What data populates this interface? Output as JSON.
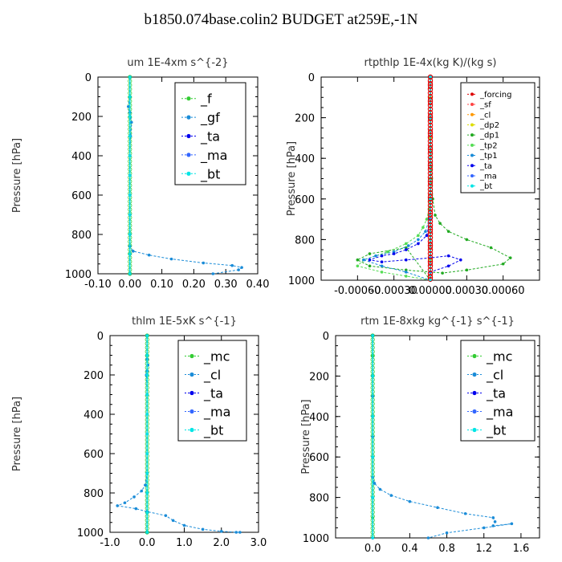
{
  "figure": {
    "title": "b1850.074base.colin2  BUDGET at259E,-1N"
  },
  "colors": {
    "f": "#33cc33",
    "gf": "#1a8cd8",
    "ta": "#0000ee",
    "ma": "#3366ff",
    "bt": "#00e5e5",
    "mc": "#33cc33",
    "cl": "#1a8cd8",
    "forcing": "#dd0000",
    "sf": "#ff4444",
    "cl_rt": "#ff9900",
    "dp2": "#dddd00",
    "dp1": "#22aa22",
    "tp2": "#55dd55",
    "tp1": "#1a8cd8"
  },
  "chart_data": [
    {
      "type": "line",
      "title": "um   1E-4xm s^{-2}",
      "ylabel": "Pressure [hPa]",
      "xlim": [
        -0.1,
        0.4
      ],
      "ylim": [
        1000,
        0
      ],
      "xticks": [
        -0.1,
        0.0,
        0.1,
        0.2,
        0.3,
        0.4
      ],
      "xtick_labels": [
        "-0.10",
        "0.00",
        "0.10",
        "0.20",
        "0.30",
        "0.40"
      ],
      "yticks": [
        0,
        200,
        400,
        600,
        800,
        1000
      ],
      "ytick_labels": [
        "0",
        "200",
        "400",
        "600",
        "800",
        "1000"
      ],
      "legend": "top-right",
      "series": [
        {
          "name": "_f",
          "color_key": "f",
          "x": [
            0.0,
            0.0,
            0.0,
            0.0,
            0.0,
            0.0,
            0.0,
            0.0,
            0.0,
            0.0,
            0.0
          ],
          "y": [
            0,
            100,
            200,
            300,
            400,
            500,
            600,
            700,
            800,
            900,
            1000
          ]
        },
        {
          "name": "_gf",
          "color_key": "gf",
          "x": [
            0.0,
            0.0,
            -0.005,
            0.0,
            0.005,
            0.002,
            0.0,
            0.0,
            0.0,
            0.0,
            0.0,
            0.0,
            0.01,
            0.06,
            0.13,
            0.23,
            0.32,
            0.35,
            0.34,
            0.26
          ],
          "y": [
            0,
            100,
            150,
            180,
            230,
            300,
            400,
            500,
            600,
            700,
            800,
            860,
            885,
            905,
            925,
            945,
            958,
            968,
            980,
            1000
          ]
        },
        {
          "name": "_ta",
          "color_key": "ta",
          "x": [
            0.0,
            0.0,
            0.0,
            0.0,
            0.0,
            0.0,
            0.0,
            0.0,
            0.0,
            0.0,
            0.0
          ],
          "y": [
            0,
            100,
            200,
            300,
            400,
            500,
            600,
            700,
            800,
            900,
            1000
          ]
        },
        {
          "name": "_ma",
          "color_key": "ma",
          "x": [
            0.0,
            0.0,
            0.0,
            0.0,
            0.0,
            0.0,
            0.0,
            0.0,
            0.0,
            0.0,
            0.0
          ],
          "y": [
            0,
            100,
            200,
            300,
            400,
            500,
            600,
            700,
            800,
            900,
            1000
          ]
        },
        {
          "name": "_bt",
          "color_key": "bt",
          "x": [
            0.0,
            0.0,
            0.0,
            0.0,
            0.0,
            0.0,
            0.0,
            0.0,
            0.0,
            0.0,
            0.0
          ],
          "y": [
            0,
            100,
            200,
            300,
            400,
            500,
            600,
            700,
            800,
            900,
            1000
          ]
        }
      ]
    },
    {
      "type": "line",
      "title": "rtpthlp   1E-4x(kg K)/(kg s)",
      "ylabel": "Pressure [hPa]",
      "xlim": [
        -0.0009,
        0.0009
      ],
      "ylim": [
        1000,
        0
      ],
      "xticks": [
        -0.0006,
        -0.0003,
        0.0,
        0.0003,
        0.0006
      ],
      "xtick_labels": [
        "-0.00060",
        "-0.00030",
        "0.00000",
        "0.00030",
        "0.00060"
      ],
      "yticks": [
        0,
        200,
        400,
        600,
        800,
        1000
      ],
      "ytick_labels": [
        "0",
        "200",
        "400",
        "600",
        "800",
        "1000"
      ],
      "legend": "top-right",
      "series": [
        {
          "name": "_forcing",
          "color_key": "forcing",
          "x": [
            0.0,
            0.0,
            0.0,
            0.0,
            0.0,
            0.0,
            0.0,
            0.0,
            0.0,
            0.0,
            0.0
          ],
          "y": [
            0,
            100,
            200,
            300,
            400,
            500,
            600,
            700,
            800,
            900,
            1000
          ]
        },
        {
          "name": "_sf",
          "color_key": "sf",
          "x": [
            0.0,
            0.0,
            0.0,
            0.0,
            0.0,
            0.0,
            0.0,
            0.0,
            0.0,
            0.0,
            0.0
          ],
          "y": [
            0,
            100,
            200,
            300,
            400,
            500,
            600,
            700,
            800,
            900,
            1000
          ]
        },
        {
          "name": "_cl",
          "color_key": "cl_rt",
          "x": [
            0.0,
            0.0,
            0.0,
            0.0,
            0.0,
            0.0,
            0.0,
            0.0,
            0.0,
            0.0,
            0.0
          ],
          "y": [
            0,
            100,
            200,
            300,
            400,
            500,
            600,
            700,
            800,
            900,
            1000
          ]
        },
        {
          "name": "_dp2",
          "color_key": "dp2",
          "x": [
            0.0,
            0.0,
            0.0,
            0.0,
            0.0,
            0.0,
            0.0,
            0.0,
            0.0,
            0.0,
            0.0
          ],
          "y": [
            0,
            100,
            200,
            300,
            400,
            500,
            600,
            700,
            800,
            900,
            1000
          ]
        },
        {
          "name": "_dp1",
          "color_key": "dp1",
          "x": [
            0.0,
            0.0,
            1e-05,
            2e-05,
            4e-05,
            8e-05,
            0.00015,
            0.0003,
            0.0005,
            0.00066,
            0.0006,
            0.0003,
            0.0001,
            -0.0002,
            -0.0005,
            -0.0006,
            -0.0005,
            -0.0002,
            0.0
          ],
          "y": [
            0,
            200,
            500,
            600,
            680,
            720,
            760,
            800,
            840,
            890,
            920,
            950,
            965,
            950,
            930,
            900,
            870,
            840,
            1000
          ]
        },
        {
          "name": "_tp2",
          "color_key": "tp2",
          "x": [
            0.0,
            0.0,
            -1e-05,
            -3e-05,
            -6e-05,
            -0.0001,
            -0.0002,
            -0.00035,
            -0.00055,
            -0.0006,
            -0.0004,
            -0.0002,
            0.0
          ],
          "y": [
            0,
            500,
            650,
            700,
            740,
            780,
            820,
            860,
            900,
            930,
            960,
            980,
            1000
          ]
        },
        {
          "name": "_tp1",
          "color_key": "tp1",
          "x": [
            0.0,
            0.0,
            -1e-05,
            -4e-05,
            -0.0001,
            -0.00018,
            -0.0003,
            -0.00045,
            -0.00055,
            -0.0004,
            -0.0002,
            0.0
          ],
          "y": [
            0,
            600,
            700,
            760,
            800,
            830,
            860,
            880,
            900,
            930,
            960,
            1000
          ]
        },
        {
          "name": "_ta",
          "color_key": "ta",
          "x": [
            0.0,
            0.0,
            -3e-05,
            -0.0001,
            -0.0002,
            -0.0003,
            -0.0004,
            -0.0005,
            -0.0004,
            -0.0002,
            0.0,
            0.00015,
            0.00025,
            0.00015,
            0.0,
            0.0
          ],
          "y": [
            0,
            700,
            780,
            820,
            850,
            870,
            880,
            900,
            910,
            900,
            890,
            880,
            900,
            930,
            960,
            1000
          ]
        },
        {
          "name": "_ma",
          "color_key": "ma",
          "x": [
            0.0,
            0.0,
            0.0,
            0.0,
            0.0,
            0.0
          ],
          "y": [
            0,
            200,
            400,
            600,
            800,
            1000
          ]
        },
        {
          "name": "_bt",
          "color_key": "bt",
          "x": [
            0.0,
            0.0,
            0.0,
            0.0,
            0.0,
            0.0
          ],
          "y": [
            0,
            200,
            400,
            600,
            800,
            1000
          ]
        }
      ]
    },
    {
      "type": "line",
      "title": "thlm   1E-5xK s^{-1}",
      "ylabel": "Pressure [hPa]",
      "xlim": [
        -1.0,
        3.0
      ],
      "ylim": [
        1000,
        0
      ],
      "xticks": [
        -1.0,
        0.0,
        1.0,
        2.0,
        3.0
      ],
      "xtick_labels": [
        "-1.0",
        "0.0",
        "1.0",
        "2.0",
        "3.0"
      ],
      "yticks": [
        0,
        200,
        400,
        600,
        800,
        1000
      ],
      "ytick_labels": [
        "0",
        "200",
        "400",
        "600",
        "800",
        "1000"
      ],
      "legend": "top-right",
      "series": [
        {
          "name": "_mc",
          "color_key": "mc",
          "x": [
            0.0,
            0.0,
            0.0,
            0.0,
            0.0,
            0.0,
            0.0,
            0.0,
            0.0,
            0.0,
            0.0
          ],
          "y": [
            0,
            100,
            200,
            300,
            400,
            500,
            600,
            700,
            800,
            900,
            1000
          ]
        },
        {
          "name": "_cl",
          "color_key": "cl",
          "x": [
            0.0,
            0.0,
            0.02,
            0.0,
            -0.02,
            0.0,
            0.0,
            0.0,
            -0.05,
            -0.15,
            -0.35,
            -0.6,
            -0.8,
            -0.3,
            0.0,
            0.5,
            0.7,
            1.0,
            1.5,
            2.0,
            2.4,
            2.5
          ],
          "y": [
            0,
            120,
            150,
            180,
            200,
            300,
            500,
            700,
            760,
            790,
            820,
            850,
            865,
            880,
            895,
            915,
            940,
            965,
            985,
            995,
            1000,
            1000
          ]
        },
        {
          "name": "_ta",
          "color_key": "ta",
          "x": [
            0.0,
            0.0,
            0.0,
            0.0,
            0.0,
            0.0,
            0.0,
            0.0,
            0.0,
            0.0,
            0.0
          ],
          "y": [
            0,
            100,
            200,
            300,
            400,
            500,
            600,
            700,
            800,
            900,
            1000
          ]
        },
        {
          "name": "_ma",
          "color_key": "ma",
          "x": [
            0.0,
            0.0,
            0.0,
            0.0,
            0.0,
            0.0,
            0.0,
            0.0,
            0.0,
            0.0,
            0.0
          ],
          "y": [
            0,
            100,
            200,
            300,
            400,
            500,
            600,
            700,
            800,
            900,
            1000
          ]
        },
        {
          "name": "_bt",
          "color_key": "bt",
          "x": [
            0.0,
            0.0,
            0.0,
            0.0,
            0.0,
            0.0,
            0.0,
            0.0,
            0.0,
            0.0,
            0.0
          ],
          "y": [
            0,
            100,
            200,
            300,
            400,
            500,
            600,
            700,
            800,
            900,
            1000
          ]
        }
      ]
    },
    {
      "type": "line",
      "title": "rtm   1E-8xkg kg^{-1} s^{-1}",
      "ylabel": "Pressure [hPa]",
      "xlim": [
        -0.4,
        1.8
      ],
      "ylim": [
        1000,
        0
      ],
      "xticks": [
        0.0,
        0.4,
        0.8,
        1.2,
        1.6
      ],
      "xtick_labels": [
        "0.0",
        "0.4",
        "0.8",
        "1.2",
        "1.6"
      ],
      "yticks": [
        0,
        200,
        400,
        600,
        800,
        1000
      ],
      "ytick_labels": [
        "0",
        "200",
        "400",
        "600",
        "800",
        "1000"
      ],
      "legend": "top-right",
      "series": [
        {
          "name": "_mc",
          "color_key": "mc",
          "x": [
            0.0,
            0.0,
            0.0,
            0.0,
            0.0,
            0.0,
            0.0,
            0.0,
            0.0,
            0.0,
            0.0
          ],
          "y": [
            0,
            100,
            200,
            300,
            400,
            500,
            600,
            700,
            800,
            900,
            1000
          ]
        },
        {
          "name": "_cl",
          "color_key": "cl",
          "x": [
            0.0,
            0.0,
            0.0,
            0.0,
            0.02,
            0.08,
            0.2,
            0.4,
            0.7,
            1.0,
            1.3,
            1.32,
            1.3,
            1.5,
            1.2,
            0.8,
            0.6
          ],
          "y": [
            0,
            300,
            500,
            700,
            730,
            760,
            790,
            820,
            850,
            880,
            900,
            920,
            940,
            930,
            950,
            975,
            1000
          ]
        },
        {
          "name": "_ta",
          "color_key": "ta",
          "x": [
            0.0,
            0.0,
            0.0,
            0.0,
            0.0,
            0.0
          ],
          "y": [
            0,
            200,
            400,
            600,
            800,
            1000
          ]
        },
        {
          "name": "_ma",
          "color_key": "ma",
          "x": [
            0.0,
            0.0,
            0.0,
            0.0,
            0.0,
            0.0
          ],
          "y": [
            0,
            200,
            400,
            600,
            800,
            1000
          ]
        },
        {
          "name": "_bt",
          "color_key": "bt",
          "x": [
            0.0,
            0.0,
            0.0,
            0.0,
            0.0,
            0.0
          ],
          "y": [
            0,
            200,
            400,
            600,
            800,
            1000
          ]
        }
      ]
    }
  ]
}
